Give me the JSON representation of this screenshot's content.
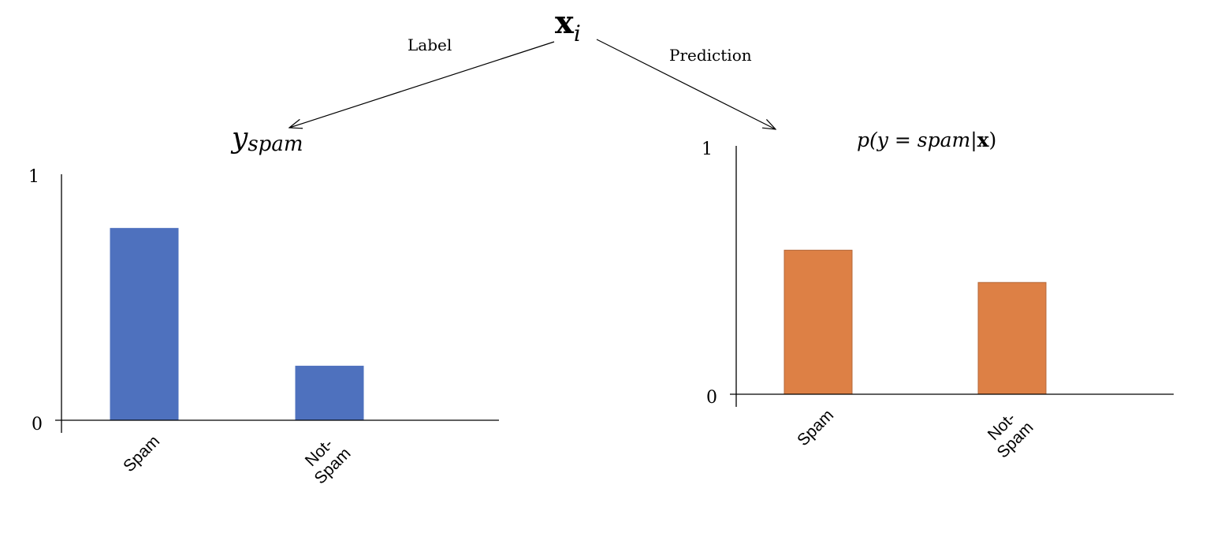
{
  "top": {
    "root_main": "x",
    "root_sub": "i",
    "left_edge_label": "Label",
    "right_edge_label": "Prediction"
  },
  "left_panel": {
    "title_main": "y",
    "title_sub": "spam",
    "axis_top_label": "1",
    "axis_zero_label": "0"
  },
  "right_panel": {
    "title": "p(y = spam|x)",
    "title_parts": {
      "prefix": "p(y = ",
      "var": "spam",
      "bar": "|",
      "bold": "x",
      "suffix": ")"
    },
    "axis_top_label": "1",
    "axis_zero_label": "0"
  },
  "colors": {
    "left_bars": "#4E71BE",
    "right_bars": "#DD8045",
    "right_bar_border": "#B5683A",
    "axis": "#000000"
  },
  "chart_data": [
    {
      "type": "bar",
      "title": "y_spam",
      "categories": [
        "Spam",
        "Not-Spam"
      ],
      "category_lines": [
        [
          "Spam"
        ],
        [
          "Not-",
          "Spam"
        ]
      ],
      "values": [
        0.78,
        0.22
      ],
      "ylim": [
        0,
        1
      ],
      "xlabel": "",
      "ylabel": "",
      "grid": false
    },
    {
      "type": "bar",
      "title": "p(y = spam|x)",
      "categories": [
        "Spam",
        "Not-Spam"
      ],
      "category_lines": [
        [
          "Spam"
        ],
        [
          "Not-",
          "Spam"
        ]
      ],
      "values": [
        0.58,
        0.45
      ],
      "ylim": [
        0,
        1
      ],
      "xlabel": "",
      "ylabel": "",
      "grid": false
    }
  ]
}
